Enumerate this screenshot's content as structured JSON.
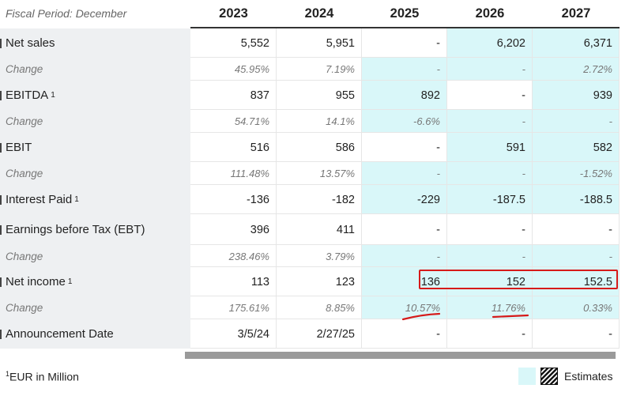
{
  "header": {
    "fiscal_period": "Fiscal Period: December",
    "years": [
      "2023",
      "2024",
      "2025",
      "2026",
      "2027"
    ]
  },
  "rows": [
    {
      "label": "Net sales",
      "sup": "",
      "sub": false,
      "values": [
        "5,552",
        "5,951",
        "-",
        "6,202",
        "6,371"
      ],
      "estimate": [
        false,
        false,
        false,
        true,
        true
      ]
    },
    {
      "label": "Change",
      "sup": "",
      "sub": true,
      "values": [
        "45.95%",
        "7.19%",
        "-",
        "-",
        "2.72%"
      ],
      "estimate": [
        false,
        false,
        true,
        true,
        true
      ]
    },
    {
      "label": "EBITDA",
      "sup": "1",
      "sub": false,
      "values": [
        "837",
        "955",
        "892",
        "-",
        "939"
      ],
      "estimate": [
        false,
        false,
        true,
        false,
        true
      ]
    },
    {
      "label": "Change",
      "sup": "",
      "sub": true,
      "values": [
        "54.71%",
        "14.1%",
        "-6.6%",
        "-",
        "-"
      ],
      "estimate": [
        false,
        false,
        true,
        true,
        true
      ]
    },
    {
      "label": "EBIT",
      "sup": "",
      "sub": false,
      "values": [
        "516",
        "586",
        "-",
        "591",
        "582"
      ],
      "estimate": [
        false,
        false,
        false,
        true,
        true
      ]
    },
    {
      "label": "Change",
      "sup": "",
      "sub": true,
      "values": [
        "111.48%",
        "13.57%",
        "-",
        "-",
        "-1.52%"
      ],
      "estimate": [
        false,
        false,
        true,
        true,
        true
      ]
    },
    {
      "label": "Interest Paid",
      "sup": "1",
      "sub": false,
      "values": [
        "-136",
        "-182",
        "-229",
        "-187.5",
        "-188.5"
      ],
      "estimate": [
        false,
        false,
        true,
        true,
        true
      ]
    },
    {
      "label": "Earnings before Tax (EBT)",
      "sup": "",
      "sub": false,
      "values": [
        "396",
        "411",
        "-",
        "-",
        "-"
      ],
      "estimate": [
        false,
        false,
        false,
        false,
        false
      ]
    },
    {
      "label": "Change",
      "sup": "",
      "sub": true,
      "values": [
        "238.46%",
        "3.79%",
        "-",
        "-",
        "-"
      ],
      "estimate": [
        false,
        false,
        true,
        true,
        true
      ]
    },
    {
      "label": "Net income",
      "sup": "1",
      "sub": false,
      "values": [
        "113",
        "123",
        "136",
        "152",
        "152.5"
      ],
      "estimate": [
        false,
        false,
        true,
        true,
        true
      ]
    },
    {
      "label": "Change",
      "sup": "",
      "sub": true,
      "values": [
        "175.61%",
        "8.85%",
        "10.57%",
        "11.76%",
        "0.33%"
      ],
      "estimate": [
        false,
        false,
        true,
        true,
        true
      ]
    },
    {
      "label": "Announcement Date",
      "sup": "",
      "sub": false,
      "values": [
        "3/5/24",
        "2/27/25",
        "-",
        "-",
        "-"
      ],
      "estimate": [
        false,
        false,
        false,
        false,
        false
      ]
    }
  ],
  "footer": {
    "footnote_sup": "1",
    "footnote": "EUR in Million",
    "legend_label": "Estimates"
  },
  "colors": {
    "estimate_bg": "#d9f7f9",
    "label_bg": "#eef0f2",
    "highlight": "#d61a1a"
  }
}
